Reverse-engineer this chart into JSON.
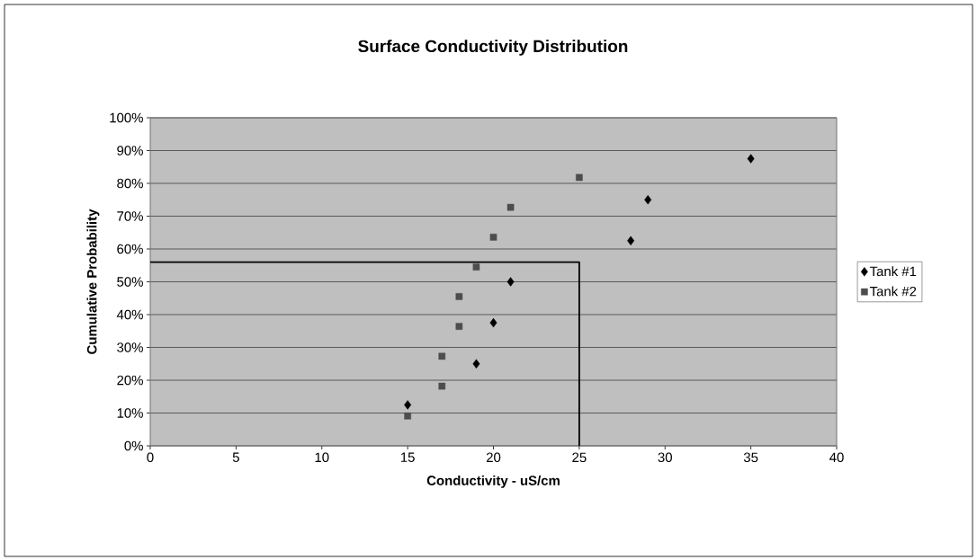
{
  "chart_data": {
    "type": "scatter",
    "title": "Surface Conductivity Distribution",
    "xlabel": "Conductivity - uS/cm",
    "ylabel": "Cumulative Probability",
    "xlim": [
      0,
      40
    ],
    "xticks": [
      0,
      5,
      10,
      15,
      20,
      25,
      30,
      35,
      40
    ],
    "ylim": [
      0,
      100
    ],
    "yticks": [
      {
        "value": 0,
        "label": "0%"
      },
      {
        "value": 10,
        "label": "10%"
      },
      {
        "value": 20,
        "label": "20%"
      },
      {
        "value": 30,
        "label": "30%"
      },
      {
        "value": 40,
        "label": "40%"
      },
      {
        "value": 50,
        "label": "50%"
      },
      {
        "value": 60,
        "label": "60%"
      },
      {
        "value": 70,
        "label": "70%"
      },
      {
        "value": 80,
        "label": "80%"
      },
      {
        "value": 90,
        "label": "90%"
      },
      {
        "value": 100,
        "label": "100%"
      }
    ],
    "grid": "y",
    "legend": "right",
    "series": [
      {
        "name": "Tank #1",
        "color": "#000000",
        "marker": "diamond",
        "x": [
          15,
          19,
          20,
          21,
          28,
          29,
          35
        ],
        "values": [
          12.5,
          25,
          37.5,
          50,
          62.5,
          75,
          87.5
        ]
      },
      {
        "name": "Tank #2",
        "color": "#4d4d4d",
        "marker": "square",
        "x": [
          15,
          17,
          17,
          18,
          18,
          19,
          20,
          21,
          25
        ],
        "values": [
          9.1,
          18.2,
          27.3,
          36.4,
          45.5,
          54.5,
          63.6,
          72.7,
          81.8
        ]
      },
      {
        "type": "line",
        "color": "#000000",
        "marker": "none",
        "line_style": "solid",
        "x": [
          25,
          25,
          0
        ],
        "values": [
          0,
          56,
          56
        ]
      }
    ]
  }
}
